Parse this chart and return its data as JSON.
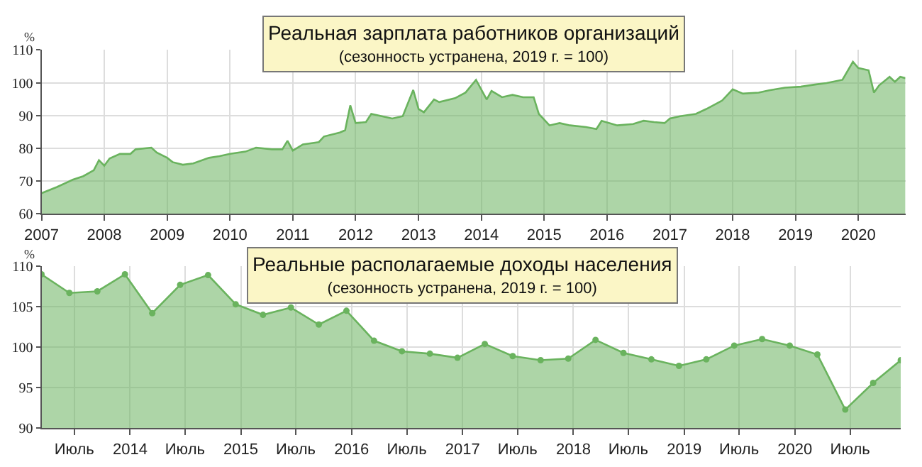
{
  "chart_data": [
    {
      "type": "area",
      "title": "Реальная зарплата работников организаций",
      "subtitle": "(сезонность устранена, 2019 г. = 100)",
      "ylabel": "%",
      "series": [
        {
          "color": "#6ab35e",
          "x": [
            "2007-01-01",
            "2007-04-01",
            "2007-07-01",
            "2007-09-01",
            "2007-11-01",
            "2007-12-01",
            "2008-01-01",
            "2008-02-01",
            "2008-04-01",
            "2008-06-01",
            "2008-07-01",
            "2008-10-01",
            "2008-11-01",
            "2009-01-01",
            "2009-02-01",
            "2009-04-01",
            "2009-06-01",
            "2009-09-01",
            "2009-11-01",
            "2010-01-01",
            "2010-04-01",
            "2010-06-01",
            "2010-09-01",
            "2010-11-01",
            "2010-12-01",
            "2011-01-01",
            "2011-03-01",
            "2011-06-01",
            "2011-07-01",
            "2011-10-01",
            "2011-11-01",
            "2011-12-01",
            "2012-01-01",
            "2012-03-01",
            "2012-04-01",
            "2012-08-01",
            "2012-10-01",
            "2012-12-01",
            "2013-01-01",
            "2013-02-01",
            "2013-04-01",
            "2013-05-01",
            "2013-08-01",
            "2013-10-01",
            "2013-12-01",
            "2014-02-01",
            "2014-03-01",
            "2014-05-01",
            "2014-07-01",
            "2014-09-01",
            "2014-11-01",
            "2014-12-01",
            "2015-02-01",
            "2015-04-01",
            "2015-06-01",
            "2015-09-01",
            "2015-11-01",
            "2015-12-01",
            "2016-03-01",
            "2016-06-01",
            "2016-08-01",
            "2016-10-01",
            "2016-12-01",
            "2017-01-01",
            "2017-03-01",
            "2017-06-01",
            "2017-08-01",
            "2017-11-01",
            "2018-01-01",
            "2018-03-01",
            "2018-06-01",
            "2018-08-01",
            "2018-11-01",
            "2019-02-01",
            "2019-05-01",
            "2019-07-01",
            "2019-10-01",
            "2019-12-01",
            "2020-01-01",
            "2020-03-01",
            "2020-04-01",
            "2020-05-01",
            "2020-07-01",
            "2020-08-01",
            "2020-09-01",
            "2020-10-01"
          ],
          "values": [
            66.3,
            68.2,
            70.4,
            71.5,
            73.3,
            76.4,
            74.7,
            76.9,
            78.3,
            78.3,
            79.7,
            80.2,
            78.7,
            77.1,
            75.8,
            75.0,
            75.4,
            77.1,
            77.6,
            78.3,
            79.0,
            80.2,
            79.7,
            79.7,
            82.3,
            79.3,
            81.2,
            81.9,
            83.6,
            84.8,
            85.5,
            93.1,
            87.7,
            88.0,
            90.5,
            89.1,
            89.8,
            97.8,
            92.0,
            91.0,
            94.9,
            94.1,
            95.3,
            97.0,
            100.9,
            94.9,
            97.5,
            95.6,
            96.3,
            95.6,
            95.6,
            90.5,
            87.0,
            87.7,
            87.0,
            86.5,
            85.9,
            88.4,
            87.0,
            87.4,
            88.4,
            88.0,
            87.7,
            89.1,
            89.8,
            90.5,
            92.0,
            94.6,
            98.0,
            96.7,
            97.0,
            97.7,
            98.5,
            98.8,
            99.5,
            99.9,
            100.9,
            106.4,
            104.5,
            103.8,
            97.0,
            99.2,
            101.8,
            100.3,
            101.8,
            101.4
          ]
        }
      ],
      "xlim": [
        "2007-01-01",
        "2020-10-01"
      ],
      "xticks": [
        {
          "value": "2007-01-01",
          "label": "2007"
        },
        {
          "value": "2008-01-01",
          "label": "2008"
        },
        {
          "value": "2009-01-01",
          "label": "2009"
        },
        {
          "value": "2010-01-01",
          "label": "2010"
        },
        {
          "value": "2011-01-01",
          "label": "2011"
        },
        {
          "value": "2012-01-01",
          "label": "2012"
        },
        {
          "value": "2013-01-01",
          "label": "2013"
        },
        {
          "value": "2014-01-01",
          "label": "2014"
        },
        {
          "value": "2015-01-01",
          "label": "2015"
        },
        {
          "value": "2016-01-01",
          "label": "2016"
        },
        {
          "value": "2017-01-01",
          "label": "2017"
        },
        {
          "value": "2018-01-01",
          "label": "2018"
        },
        {
          "value": "2019-01-01",
          "label": "2019"
        },
        {
          "value": "2020-01-01",
          "label": "2020"
        }
      ],
      "ylim": [
        60,
        110
      ],
      "yticks": [
        60,
        70,
        80,
        90,
        100,
        110
      ],
      "grid": true,
      "marker": "none"
    },
    {
      "type": "area",
      "title": "Реальные располагаемые доходы населения",
      "subtitle": "(сезонность устранена, 2019 г. = 100)",
      "ylabel": "%",
      "series": [
        {
          "color": "#6ab35e",
          "x": [
            "2013-03-15",
            "2013-06-15",
            "2013-09-15",
            "2013-12-15",
            "2014-03-15",
            "2014-06-15",
            "2014-09-15",
            "2014-12-15",
            "2015-03-15",
            "2015-06-15",
            "2015-09-15",
            "2015-12-15",
            "2016-03-15",
            "2016-06-15",
            "2016-09-15",
            "2016-12-15",
            "2017-03-15",
            "2017-06-15",
            "2017-09-15",
            "2017-12-15",
            "2018-03-15",
            "2018-06-15",
            "2018-09-15",
            "2018-12-15",
            "2019-03-15",
            "2019-06-15",
            "2019-09-15",
            "2019-12-15",
            "2020-03-15",
            "2020-06-15",
            "2020-09-15",
            "2020-12-15"
          ],
          "values": [
            109.0,
            106.7,
            106.9,
            109.0,
            104.2,
            107.7,
            108.9,
            105.3,
            104.0,
            104.9,
            102.8,
            104.5,
            100.8,
            99.5,
            99.2,
            98.7,
            100.4,
            98.9,
            98.4,
            98.6,
            100.9,
            99.3,
            98.5,
            97.7,
            98.5,
            100.2,
            101.0,
            100.2,
            99.1,
            92.3,
            95.6,
            98.4
          ]
        }
      ],
      "xlim": [
        "2013-03-15",
        "2020-12-15"
      ],
      "xticks": [
        {
          "value": "2013-07-01",
          "label": "Июль"
        },
        {
          "value": "2014-01-01",
          "label": "2014"
        },
        {
          "value": "2014-07-01",
          "label": "Июль"
        },
        {
          "value": "2015-01-01",
          "label": "2015"
        },
        {
          "value": "2015-07-01",
          "label": "Июль"
        },
        {
          "value": "2016-01-01",
          "label": "2016"
        },
        {
          "value": "2016-07-01",
          "label": "Июль"
        },
        {
          "value": "2017-01-01",
          "label": "2017"
        },
        {
          "value": "2017-07-01",
          "label": "Июль"
        },
        {
          "value": "2018-01-01",
          "label": "2018"
        },
        {
          "value": "2018-07-01",
          "label": "Июль"
        },
        {
          "value": "2019-01-01",
          "label": "2019"
        },
        {
          "value": "2019-07-01",
          "label": "Июль"
        },
        {
          "value": "2020-01-01",
          "label": "2020"
        },
        {
          "value": "2020-07-01",
          "label": "Июль"
        }
      ],
      "ylim": [
        90,
        110
      ],
      "yticks": [
        90,
        95,
        100,
        105,
        110
      ],
      "grid": true,
      "marker": "circle"
    }
  ]
}
